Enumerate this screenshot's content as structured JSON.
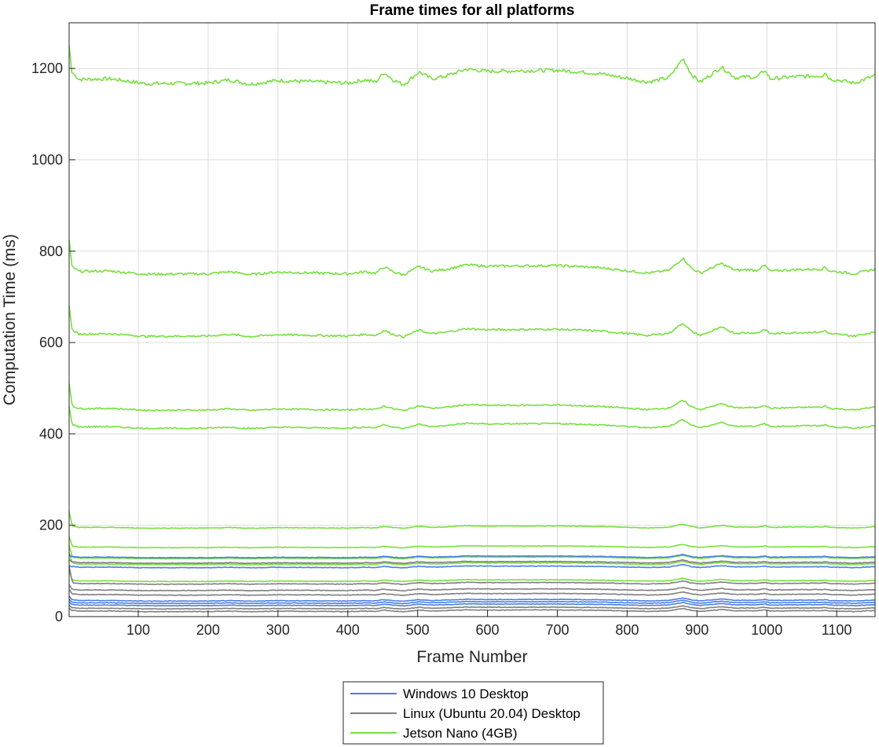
{
  "chart_data": {
    "type": "line",
    "title": "Frame times for all platforms",
    "xlabel": "Frame Number",
    "ylabel": "Computation Time (ms)",
    "xlim": [
      1,
      1155
    ],
    "ylim": [
      0,
      1300
    ],
    "xticks": [
      100,
      200,
      300,
      400,
      500,
      600,
      700,
      800,
      900,
      1000,
      1100
    ],
    "yticks": [
      0,
      200,
      400,
      600,
      800,
      1000,
      1200
    ],
    "grid": true,
    "legend_position": "bottom-outside",
    "colors": {
      "Windows 10 Desktop": "#4a7fe0",
      "Linux (Ubuntu 20.04) Desktop": "#7f7f7f",
      "Jetson Nano (4GB)": "#76e03d"
    },
    "legend": [
      "Windows 10 Desktop",
      "Linux (Ubuntu 20.04) Desktop",
      "Jetson Nano (4GB)"
    ],
    "series": [
      {
        "group": "Jetson Nano (4GB)",
        "base": 1175,
        "start": 1250
      },
      {
        "group": "Jetson Nano (4GB)",
        "base": 755,
        "start": 825
      },
      {
        "group": "Jetson Nano (4GB)",
        "base": 618,
        "start": 680
      },
      {
        "group": "Jetson Nano (4GB)",
        "base": 455,
        "start": 510
      },
      {
        "group": "Jetson Nano (4GB)",
        "base": 415,
        "start": 460
      },
      {
        "group": "Jetson Nano (4GB)",
        "base": 195,
        "start": 230
      },
      {
        "group": "Jetson Nano (4GB)",
        "base": 152,
        "start": 175
      },
      {
        "group": "Jetson Nano (4GB)",
        "base": 128,
        "start": 155
      },
      {
        "group": "Jetson Nano (4GB)",
        "base": 115,
        "start": 140
      },
      {
        "group": "Jetson Nano (4GB)",
        "base": 78,
        "start": 100
      },
      {
        "group": "Windows 10 Desktop",
        "base": 130,
        "start": 135
      },
      {
        "group": "Windows 10 Desktop",
        "base": 108,
        "start": 112
      },
      {
        "group": "Windows 10 Desktop",
        "base": 35,
        "start": 45
      },
      {
        "group": "Windows 10 Desktop",
        "base": 30,
        "start": 38
      },
      {
        "group": "Windows 10 Desktop",
        "base": 25,
        "start": 32
      },
      {
        "group": "Linux (Ubuntu 20.04) Desktop",
        "base": 118,
        "start": 125
      },
      {
        "group": "Linux (Ubuntu 20.04) Desktop",
        "base": 72,
        "start": 110
      },
      {
        "group": "Linux (Ubuntu 20.04) Desktop",
        "base": 58,
        "start": 70
      },
      {
        "group": "Linux (Ubuntu 20.04) Desktop",
        "base": 48,
        "start": 60
      },
      {
        "group": "Linux (Ubuntu 20.04) Desktop",
        "base": 18,
        "start": 25
      },
      {
        "group": "Linux (Ubuntu 20.04) Desktop",
        "base": 12,
        "start": 18
      }
    ]
  }
}
